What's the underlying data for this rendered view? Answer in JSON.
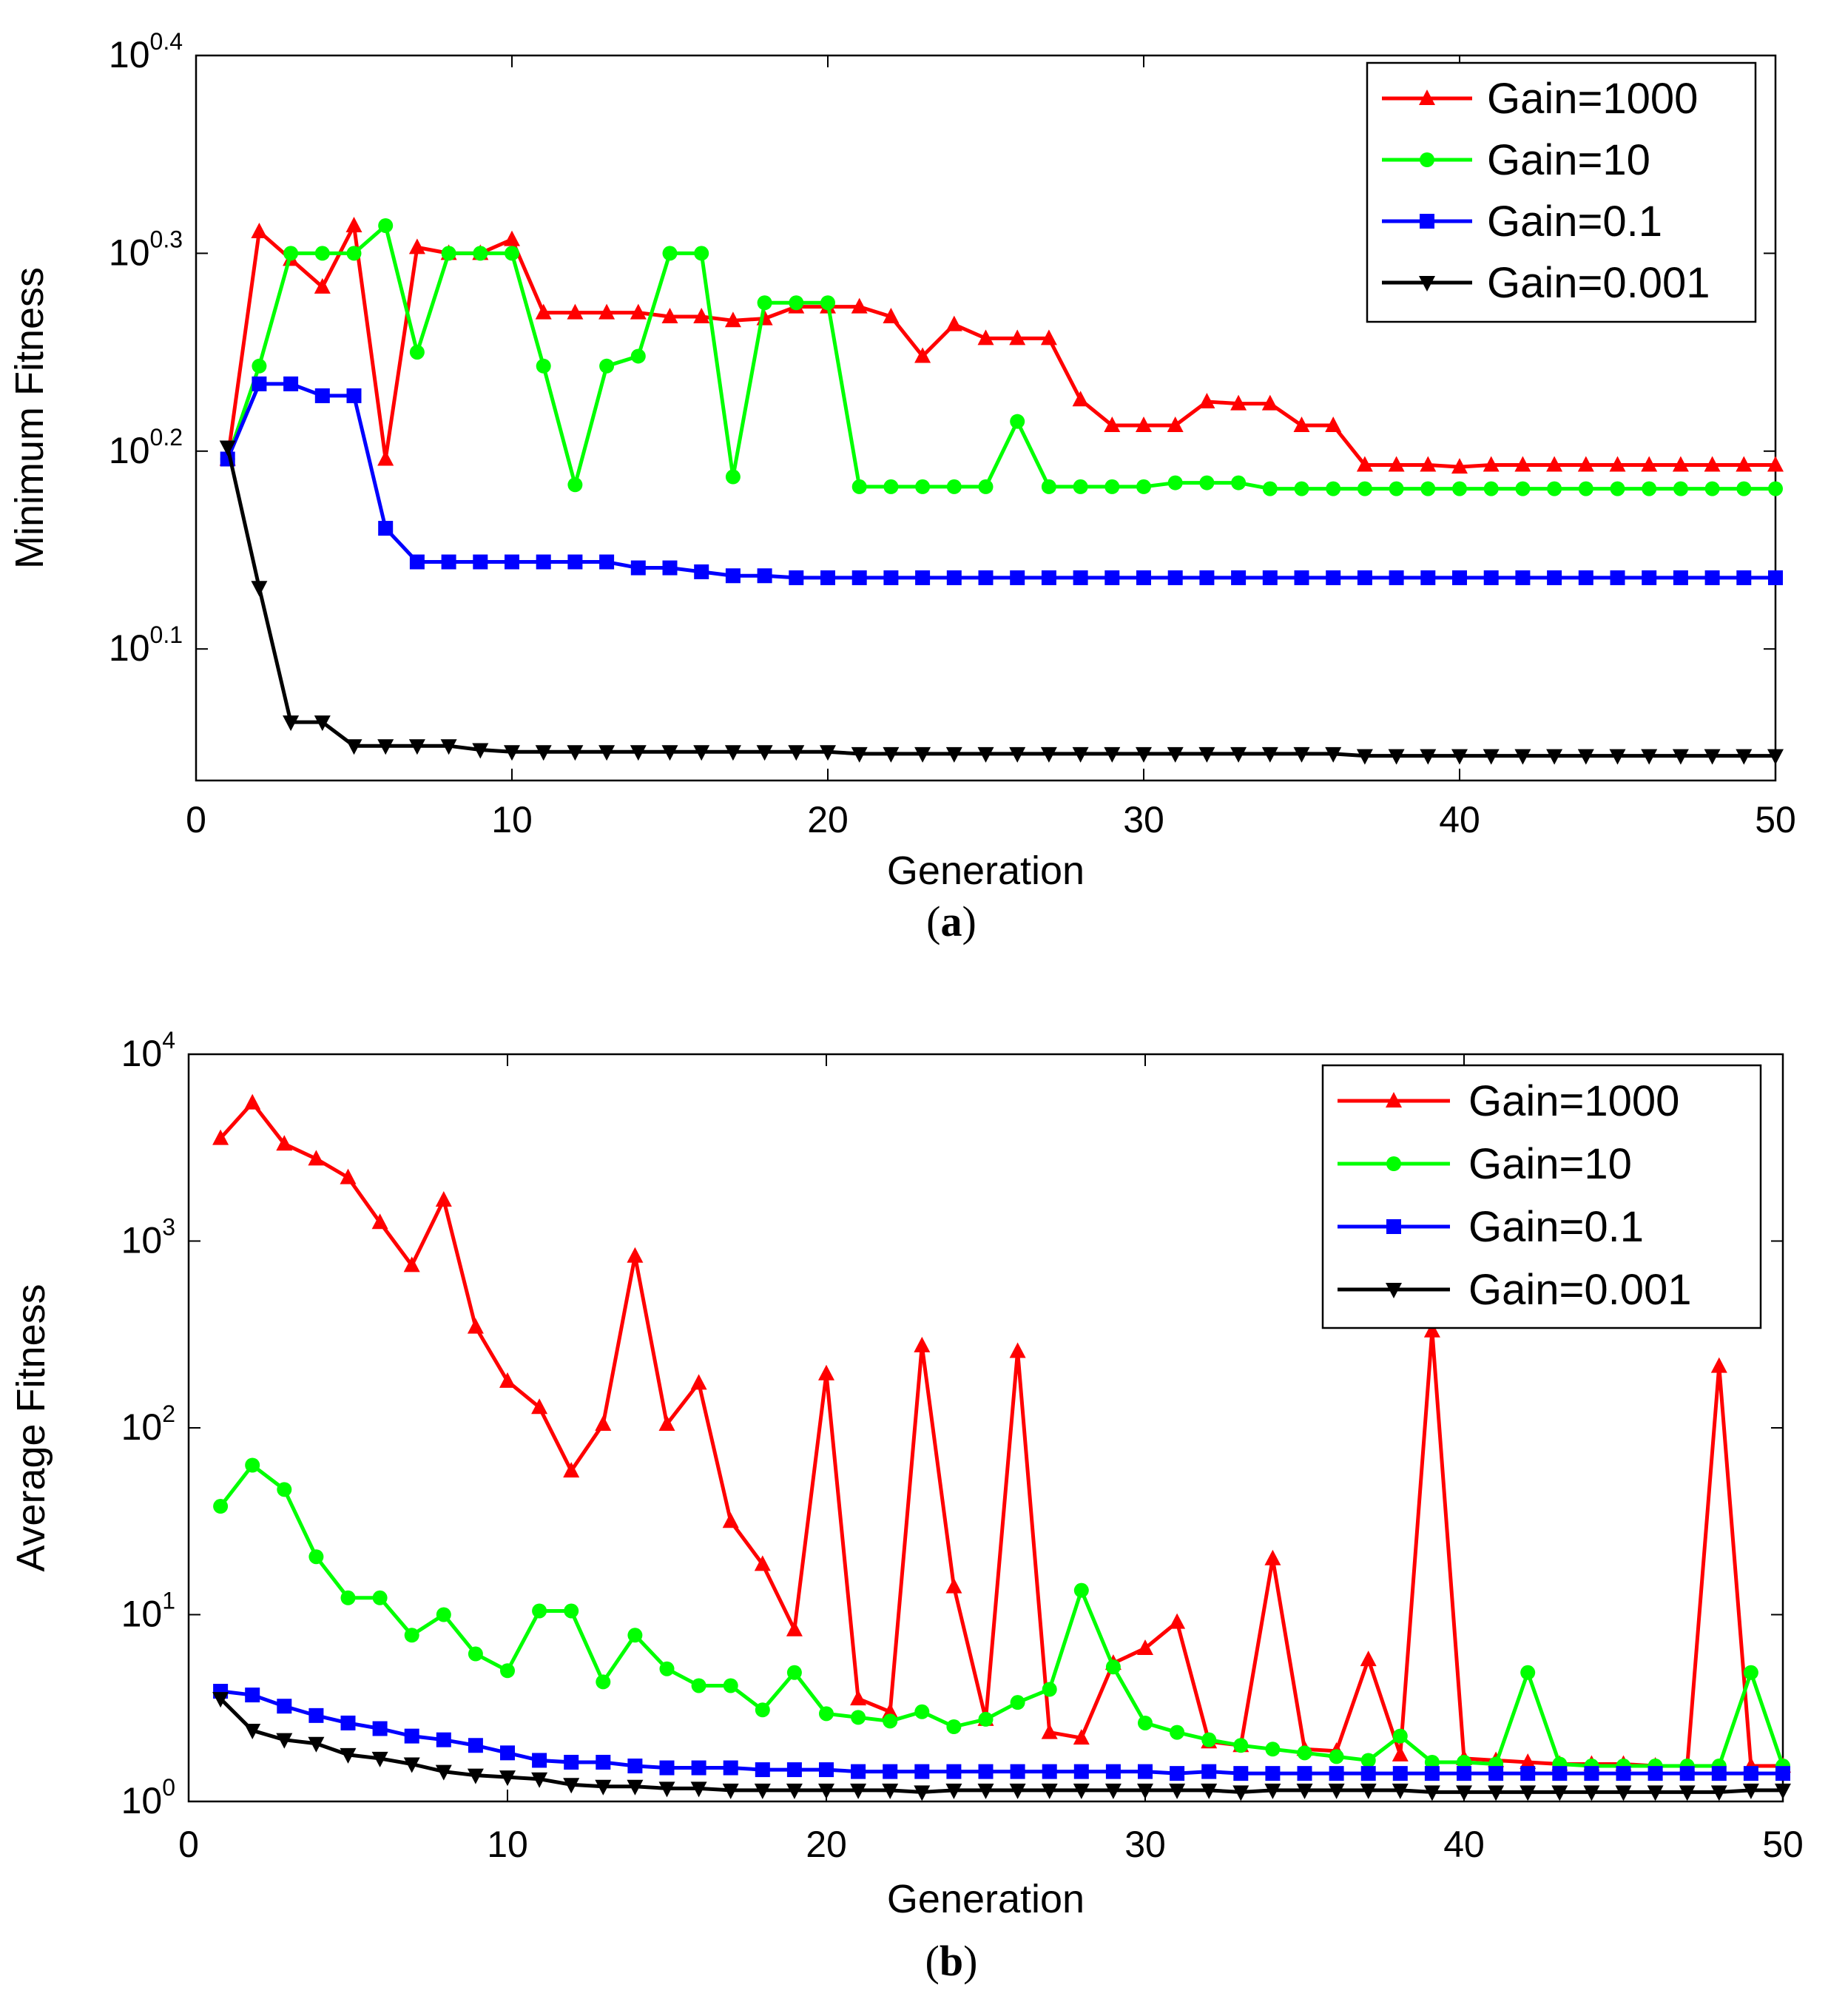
{
  "chart_data": [
    {
      "type": "line",
      "panel": "a",
      "caption": {
        "open": "(",
        "letter": "a",
        "close": ")"
      },
      "xlabel": "Generation",
      "ylabel": "Minimum Fitness",
      "yscale": "log10",
      "xlim": [
        0,
        50
      ],
      "ylim_log10": [
        0.0335,
        0.4
      ],
      "x_ticks": [
        "0",
        "10",
        "20",
        "30",
        "40",
        "50"
      ],
      "y_ticks": [
        {
          "base": "10",
          "exp": "0.1",
          "log": 0.1
        },
        {
          "base": "10",
          "exp": "0.2",
          "log": 0.2
        },
        {
          "base": "10",
          "exp": "0.3",
          "log": 0.3
        },
        {
          "base": "10",
          "exp": "0.4",
          "log": 0.4
        }
      ],
      "legend_position": "top-right",
      "x": [
        1,
        2,
        3,
        4,
        5,
        6,
        7,
        8,
        9,
        10,
        11,
        12,
        13,
        14,
        15,
        16,
        17,
        18,
        19,
        20,
        21,
        22,
        23,
        24,
        25,
        26,
        27,
        28,
        29,
        30,
        31,
        32,
        33,
        34,
        35,
        36,
        37,
        38,
        39,
        40,
        41,
        42,
        43,
        44,
        45,
        46,
        47,
        48,
        49,
        50
      ],
      "series": [
        {
          "name": "Gain=1000",
          "color": "#ff0000",
          "marker": "triangle-up",
          "log_values": [
            0.196,
            0.311,
            0.297,
            0.283,
            0.314,
            0.196,
            0.303,
            0.3,
            0.3,
            0.307,
            0.27,
            0.27,
            0.27,
            0.27,
            0.268,
            0.268,
            0.266,
            0.267,
            0.273,
            0.273,
            0.273,
            0.268,
            0.248,
            0.264,
            0.257,
            0.257,
            0.257,
            0.226,
            0.213,
            0.213,
            0.213,
            0.225,
            0.224,
            0.224,
            0.213,
            0.213,
            0.193,
            0.193,
            0.193,
            0.192,
            0.193,
            0.193,
            0.193,
            0.193,
            0.193,
            0.193,
            0.193,
            0.193,
            0.193,
            0.193
          ]
        },
        {
          "name": "Gain=10",
          "color": "#00ff00",
          "marker": "circle",
          "log_values": [
            0.196,
            0.243,
            0.3,
            0.3,
            0.3,
            0.314,
            0.25,
            0.3,
            0.3,
            0.3,
            0.243,
            0.183,
            0.243,
            0.248,
            0.3,
            0.3,
            0.187,
            0.275,
            0.275,
            0.275,
            0.182,
            0.182,
            0.182,
            0.182,
            0.182,
            0.215,
            0.182,
            0.182,
            0.182,
            0.182,
            0.184,
            0.184,
            0.184,
            0.181,
            0.181,
            0.181,
            0.181,
            0.181,
            0.181,
            0.181,
            0.181,
            0.181,
            0.181,
            0.181,
            0.181,
            0.181,
            0.181,
            0.181,
            0.181,
            0.181
          ]
        },
        {
          "name": "Gain=0.1",
          "color": "#0000ff",
          "marker": "square",
          "log_values": [
            0.196,
            0.234,
            0.234,
            0.228,
            0.228,
            0.161,
            0.144,
            0.144,
            0.144,
            0.144,
            0.144,
            0.144,
            0.144,
            0.141,
            0.141,
            0.139,
            0.137,
            0.137,
            0.136,
            0.136,
            0.136,
            0.136,
            0.136,
            0.136,
            0.136,
            0.136,
            0.136,
            0.136,
            0.136,
            0.136,
            0.136,
            0.136,
            0.136,
            0.136,
            0.136,
            0.136,
            0.136,
            0.136,
            0.136,
            0.136,
            0.136,
            0.136,
            0.136,
            0.136,
            0.136,
            0.136,
            0.136,
            0.136,
            0.136,
            0.136
          ]
        },
        {
          "name": "Gain=0.001",
          "color": "#000000",
          "marker": "triangle-down",
          "log_values": [
            0.202,
            0.131,
            0.063,
            0.063,
            0.051,
            0.051,
            0.051,
            0.051,
            0.049,
            0.048,
            0.048,
            0.048,
            0.048,
            0.048,
            0.048,
            0.048,
            0.048,
            0.048,
            0.048,
            0.048,
            0.047,
            0.047,
            0.047,
            0.047,
            0.047,
            0.047,
            0.047,
            0.047,
            0.047,
            0.047,
            0.047,
            0.047,
            0.047,
            0.047,
            0.047,
            0.047,
            0.046,
            0.046,
            0.046,
            0.046,
            0.046,
            0.046,
            0.046,
            0.046,
            0.046,
            0.046,
            0.046,
            0.046,
            0.046,
            0.046
          ]
        }
      ]
    },
    {
      "type": "line",
      "panel": "b",
      "caption": {
        "open": "(",
        "letter": "b",
        "close": ")"
      },
      "xlabel": "Generation",
      "ylabel": "Average Fitness",
      "yscale": "log10",
      "xlim": [
        0,
        50
      ],
      "ylim_log10": [
        0,
        4
      ],
      "x_ticks": [
        "0",
        "10",
        "20",
        "30",
        "40",
        "50"
      ],
      "y_ticks": [
        {
          "base": "10",
          "exp": "0",
          "log": 0
        },
        {
          "base": "10",
          "exp": "1",
          "log": 1
        },
        {
          "base": "10",
          "exp": "2",
          "log": 2
        },
        {
          "base": "10",
          "exp": "3",
          "log": 3
        },
        {
          "base": "10",
          "exp": "4",
          "log": 4
        }
      ],
      "legend_position": "top-right",
      "x": [
        1,
        2,
        3,
        4,
        5,
        6,
        7,
        8,
        9,
        10,
        11,
        12,
        13,
        14,
        15,
        16,
        17,
        18,
        19,
        20,
        21,
        22,
        23,
        24,
        25,
        26,
        27,
        28,
        29,
        30,
        31,
        32,
        33,
        34,
        35,
        36,
        37,
        38,
        39,
        40,
        41,
        42,
        43,
        44,
        45,
        46,
        47,
        48,
        49,
        50
      ],
      "series": [
        {
          "name": "Gain=1000",
          "color": "#ff0000",
          "marker": "triangle-up",
          "log_values": [
            3.55,
            3.74,
            3.52,
            3.44,
            3.34,
            3.1,
            2.87,
            3.22,
            2.54,
            2.25,
            2.11,
            1.77,
            2.02,
            2.92,
            2.02,
            2.24,
            1.5,
            1.27,
            0.92,
            2.29,
            0.55,
            0.48,
            2.44,
            1.15,
            0.44,
            2.41,
            0.37,
            0.34,
            0.74,
            0.82,
            0.96,
            0.32,
            0.3,
            1.3,
            0.28,
            0.27,
            0.76,
            0.25,
            2.52,
            0.23,
            0.22,
            0.21,
            0.2,
            0.2,
            0.2,
            0.19,
            0.19,
            2.33,
            0.19,
            0.19
          ]
        },
        {
          "name": "Gain=10",
          "color": "#00ff00",
          "marker": "circle",
          "log_values": [
            1.58,
            1.8,
            1.67,
            1.31,
            1.09,
            1.09,
            0.89,
            1.0,
            0.79,
            0.7,
            1.02,
            1.02,
            0.64,
            0.89,
            0.71,
            0.62,
            0.62,
            0.49,
            0.69,
            0.47,
            0.45,
            0.43,
            0.48,
            0.4,
            0.44,
            0.53,
            0.6,
            1.13,
            0.72,
            0.42,
            0.37,
            0.33,
            0.3,
            0.28,
            0.26,
            0.24,
            0.22,
            0.35,
            0.21,
            0.21,
            0.2,
            0.69,
            0.2,
            0.19,
            0.19,
            0.19,
            0.19,
            0.19,
            0.69,
            0.19
          ]
        },
        {
          "name": "Gain=0.1",
          "color": "#0000ff",
          "marker": "square",
          "log_values": [
            0.59,
            0.57,
            0.51,
            0.46,
            0.42,
            0.39,
            0.35,
            0.33,
            0.3,
            0.26,
            0.22,
            0.21,
            0.21,
            0.19,
            0.18,
            0.18,
            0.18,
            0.17,
            0.17,
            0.17,
            0.16,
            0.16,
            0.16,
            0.16,
            0.16,
            0.16,
            0.16,
            0.16,
            0.16,
            0.16,
            0.15,
            0.16,
            0.15,
            0.15,
            0.15,
            0.15,
            0.15,
            0.15,
            0.15,
            0.15,
            0.15,
            0.15,
            0.15,
            0.15,
            0.15,
            0.15,
            0.15,
            0.15,
            0.15,
            0.15
          ]
        },
        {
          "name": "Gain=0.001",
          "color": "#000000",
          "marker": "triangle-down",
          "log_values": [
            0.55,
            0.38,
            0.33,
            0.31,
            0.25,
            0.23,
            0.2,
            0.16,
            0.14,
            0.13,
            0.12,
            0.09,
            0.08,
            0.08,
            0.07,
            0.07,
            0.06,
            0.06,
            0.06,
            0.06,
            0.06,
            0.06,
            0.05,
            0.06,
            0.06,
            0.06,
            0.06,
            0.06,
            0.06,
            0.06,
            0.06,
            0.06,
            0.05,
            0.06,
            0.06,
            0.06,
            0.06,
            0.06,
            0.05,
            0.05,
            0.05,
            0.05,
            0.05,
            0.05,
            0.05,
            0.05,
            0.05,
            0.05,
            0.06,
            0.06
          ]
        }
      ]
    }
  ]
}
